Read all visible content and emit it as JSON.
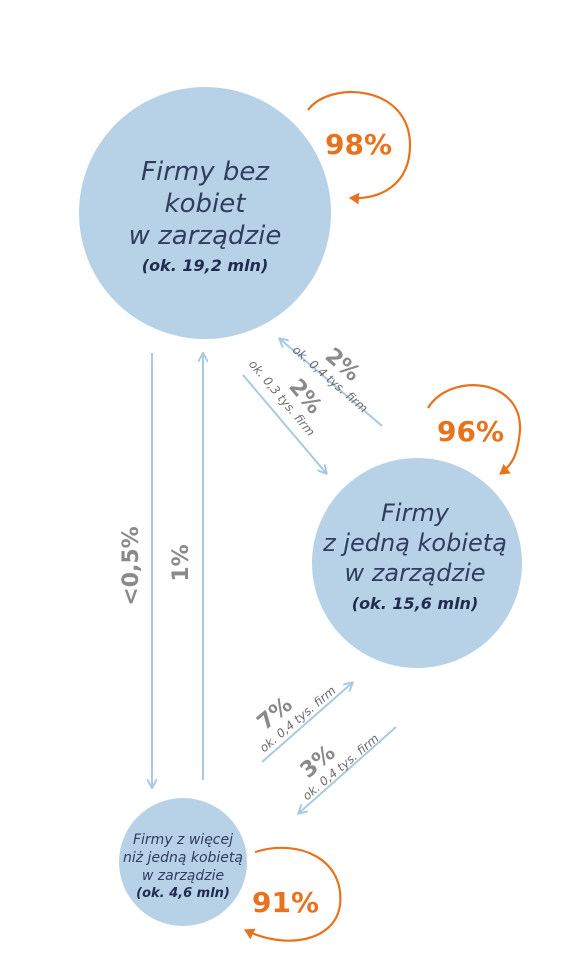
{
  "colors": {
    "node_fill": "#b7d2e6",
    "flow_arrow": "#a9c9e3",
    "self_loop": "#e8731f",
    "percent_gray": "#8a8a8a"
  },
  "nodes": {
    "no_women": {
      "lines": [
        "Firmy bez",
        "kobiet",
        "w zarządzie"
      ],
      "count": "(ok. 19,2 mln)",
      "retention": "98%"
    },
    "one_woman": {
      "lines": [
        "Firmy",
        "z jedną kobietą",
        "w zarządzie"
      ],
      "count": "(ok. 15,6 mln)",
      "retention": "96%"
    },
    "more_women": {
      "lines": [
        "Firmy z więcej",
        "niż jedną kobietą",
        "w zarządzie"
      ],
      "count": "(ok. 4,6 mln)",
      "retention": "91%"
    }
  },
  "flows": {
    "one_to_none": {
      "pct": "2%",
      "sub": "ok. 0,4 tys. firm"
    },
    "none_to_one": {
      "pct": "2%",
      "sub": "ok. 0,3 tys. firm"
    },
    "none_to_more": {
      "pct": "<0,5%"
    },
    "more_to_none": {
      "pct": "1%"
    },
    "more_to_one": {
      "pct": "7%",
      "sub": "ok. 0,4 tys. firm"
    },
    "one_to_more": {
      "pct": "3%",
      "sub": "ok. 0,4 tys. firm"
    }
  }
}
